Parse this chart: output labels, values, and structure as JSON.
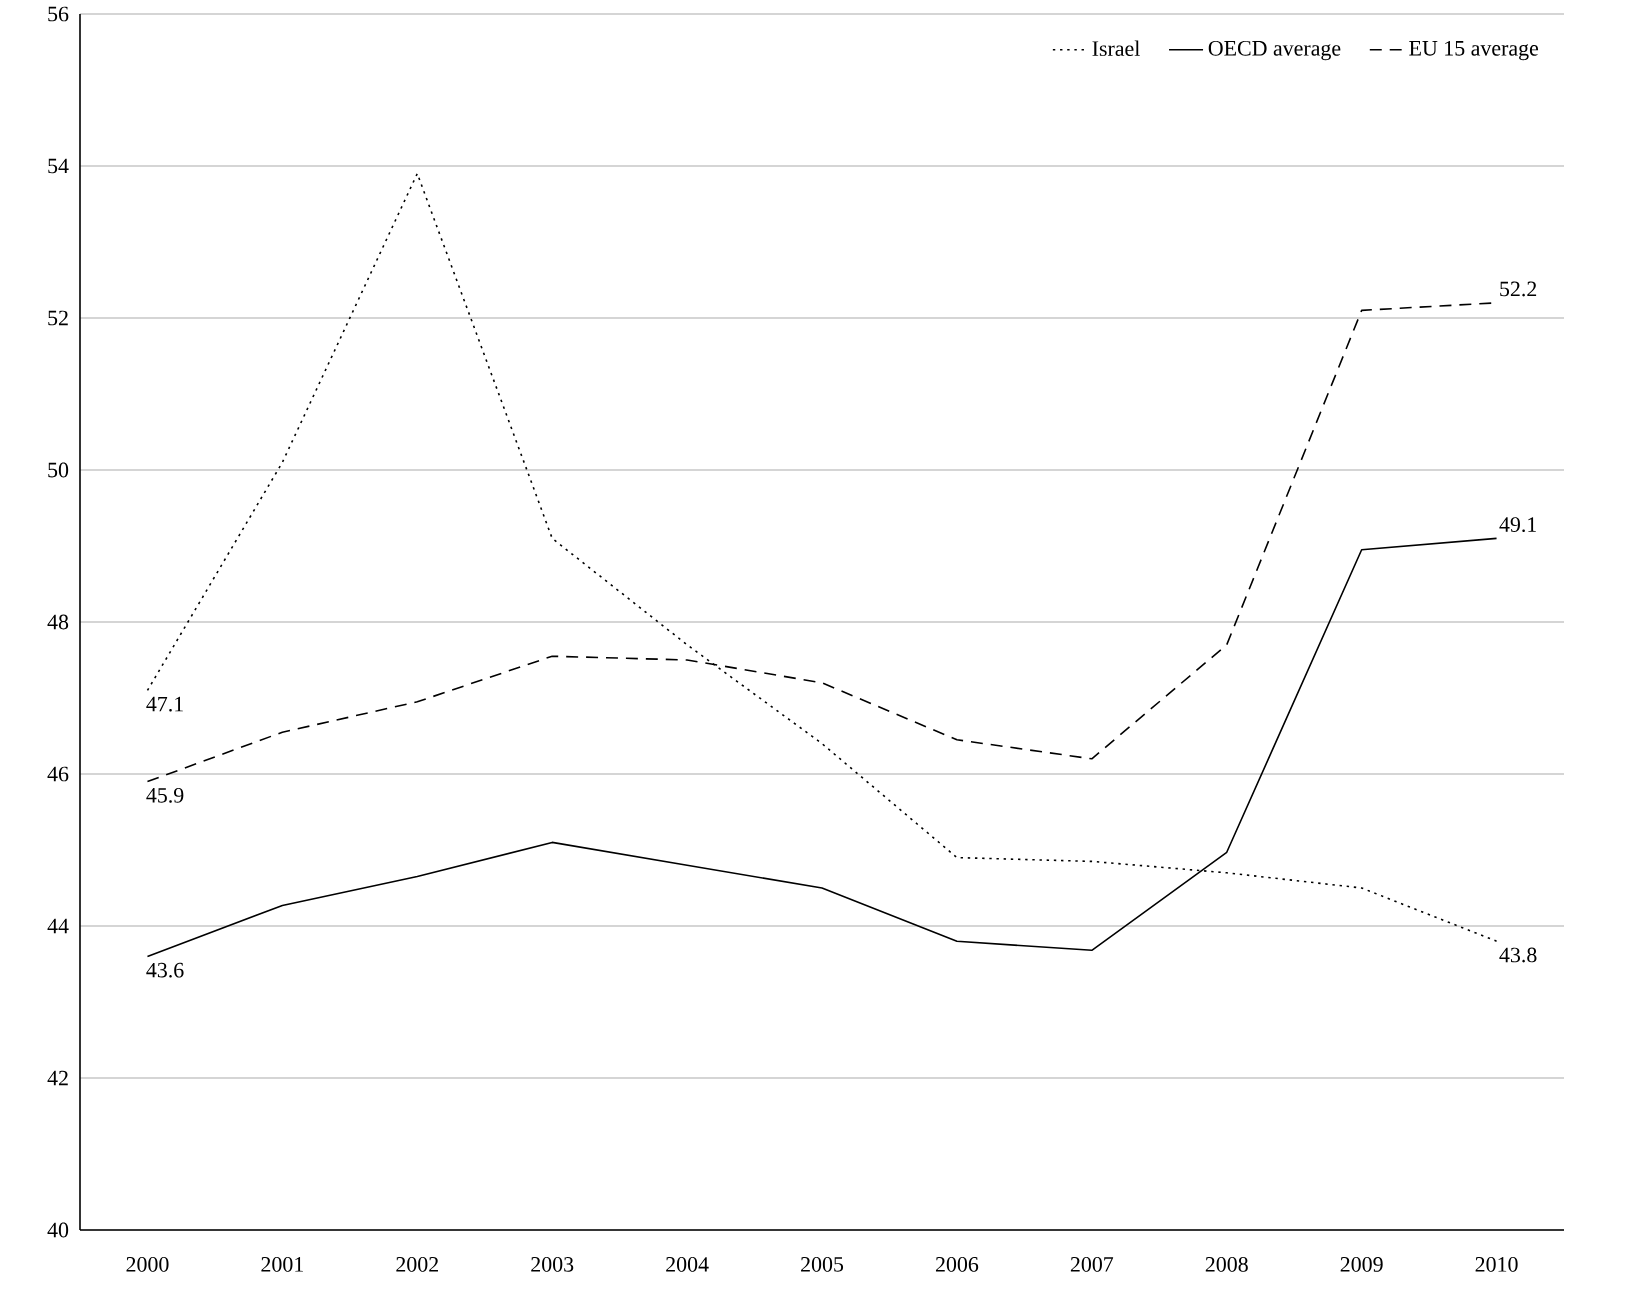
{
  "chart_data": {
    "type": "line",
    "categories": [
      "2000",
      "2001",
      "2002",
      "2003",
      "2004",
      "2005",
      "2006",
      "2007",
      "2008",
      "2009",
      "2010"
    ],
    "series": [
      {
        "name": "Israel",
        "color": "#000000",
        "line_style": "dotted",
        "values": [
          47.1,
          50.1,
          53.9,
          49.1,
          47.7,
          46.4,
          44.9,
          44.85,
          44.7,
          44.5,
          43.8
        ],
        "value_labels": [
          "47.1",
          null,
          null,
          null,
          null,
          null,
          null,
          null,
          null,
          null,
          "43.8"
        ]
      },
      {
        "name": "OECD average",
        "color": "#000000",
        "line_style": "solid",
        "values": [
          43.6,
          44.27,
          44.65,
          45.1,
          44.8,
          44.5,
          43.8,
          43.68,
          44.97,
          48.95,
          49.1
        ],
        "value_labels": [
          "43.6",
          null,
          null,
          null,
          null,
          null,
          null,
          null,
          null,
          null,
          "49.1"
        ]
      },
      {
        "name": "EU 15 average",
        "color": "#000000",
        "line_style": "dashed",
        "values": [
          45.9,
          46.55,
          46.95,
          47.55,
          47.5,
          47.2,
          46.45,
          46.2,
          47.7,
          52.1,
          52.2
        ],
        "value_labels": [
          "45.9",
          null,
          null,
          null,
          null,
          null,
          null,
          null,
          null,
          null,
          "52.2"
        ]
      }
    ],
    "ylim": [
      40,
      56
    ],
    "yticks": [
      40,
      42,
      44,
      46,
      48,
      50,
      52,
      54,
      56
    ],
    "grid": "y",
    "legend": "top right",
    "marker": "none"
  }
}
